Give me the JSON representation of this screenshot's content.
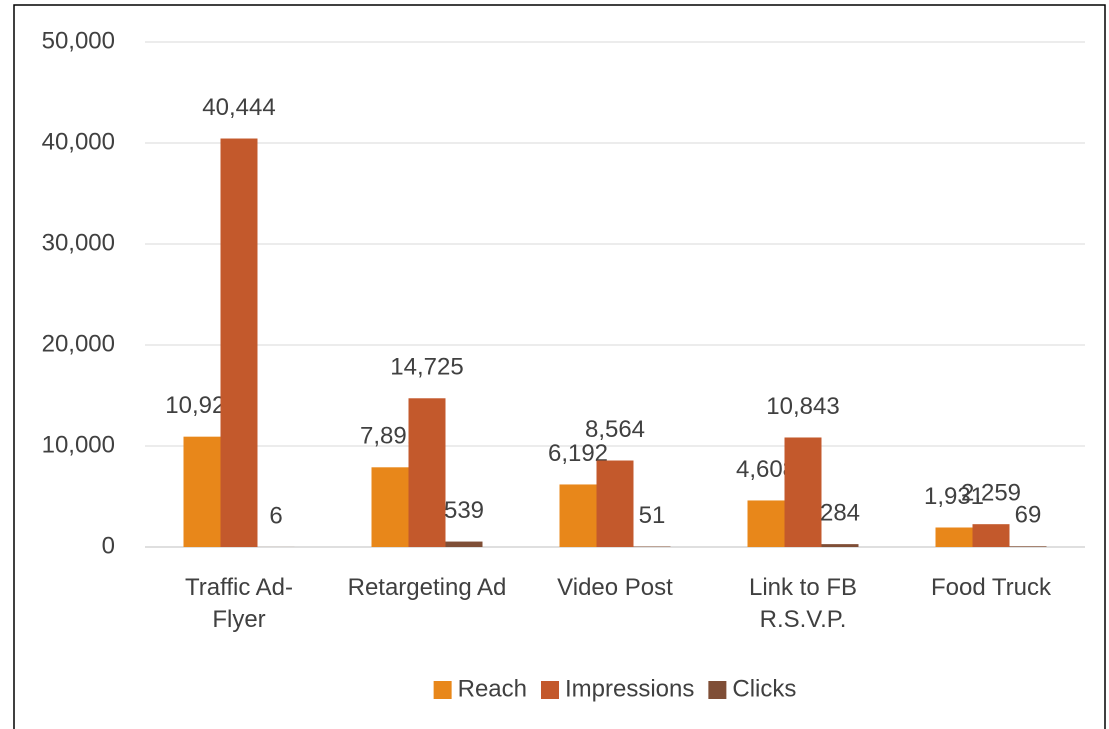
{
  "chart_data": {
    "type": "bar",
    "categories": [
      "Traffic Ad-Flyer",
      "Retargeting Ad",
      "Video Post",
      "Link to FB R.S.V.P.",
      "Food Truck"
    ],
    "series": [
      {
        "name": "Reach",
        "color": "#e8871a",
        "values": [
          10924,
          7891,
          6192,
          4608,
          1931
        ],
        "value_labels": [
          "10,924",
          "7,891",
          "6,192",
          "4,608",
          "1,931"
        ]
      },
      {
        "name": "Impressions",
        "color": "#c3592c",
        "values": [
          40444,
          14725,
          8564,
          10843,
          2259
        ],
        "value_labels": [
          "40,444",
          "14,725",
          "8,564",
          "10,843",
          "2,259"
        ]
      },
      {
        "name": "Clicks",
        "color": "#7f4e36",
        "values": [
          6,
          539,
          51,
          284,
          69
        ]
      }
    ],
    "ylim": [
      0,
      50000
    ],
    "yticks": [
      0,
      {
        "value": 10000,
        "label": "10,000"
      },
      {
        "value": 20000,
        "label": "20,000"
      },
      {
        "value": 30000,
        "label": "30,000"
      },
      {
        "value": 40000,
        "label": "40,000"
      },
      {
        "value": 50000,
        "label": "50,000"
      }
    ],
    "grid": true,
    "legend": "bottom"
  }
}
